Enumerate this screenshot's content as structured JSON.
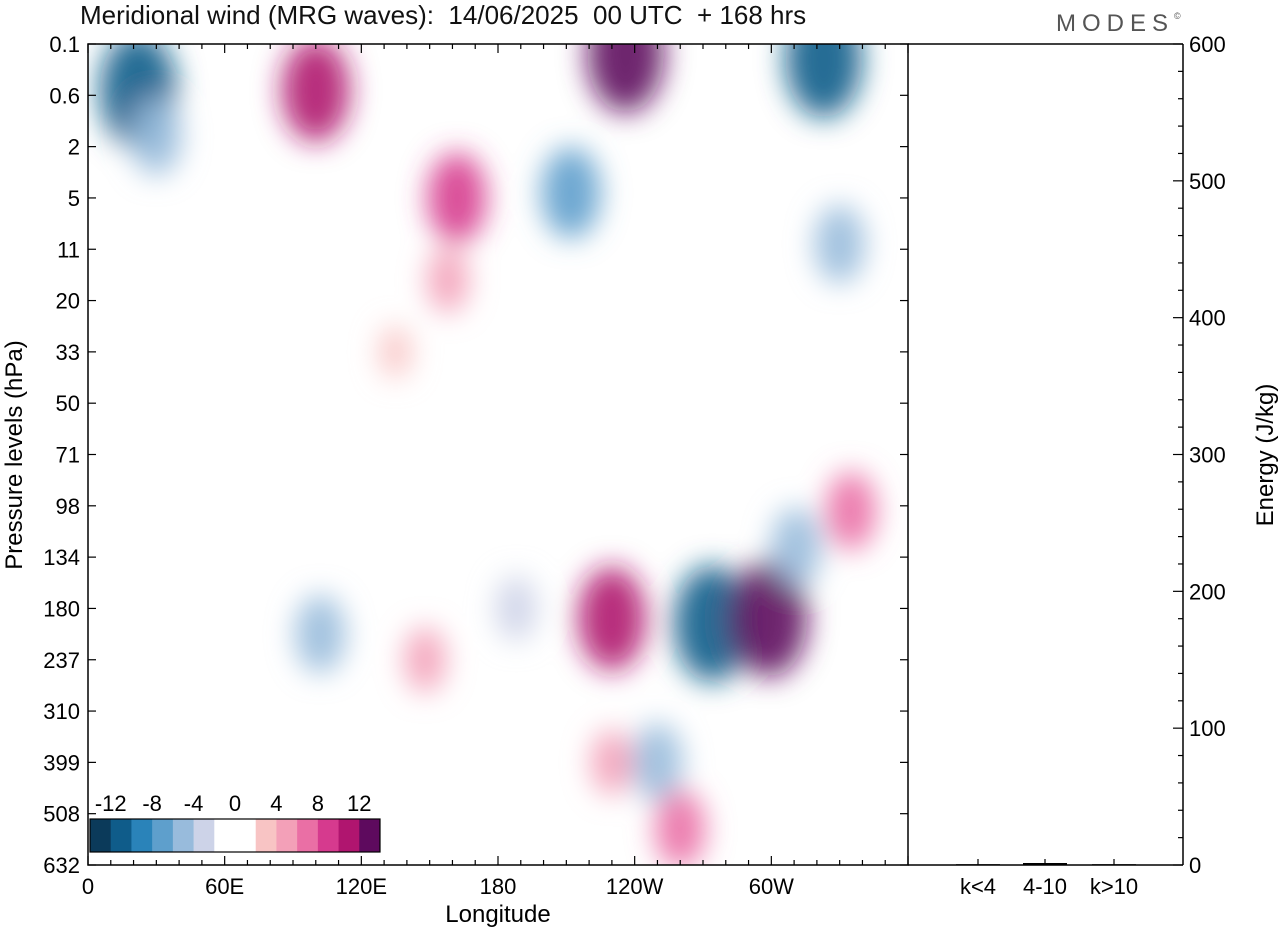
{
  "title": "Meridional wind (MRG waves):  14/06/2025  00 UTC  + 168 hrs",
  "brand": {
    "name": "MODES",
    "mark": "©"
  },
  "chart_data": [
    {
      "type": "heatmap",
      "title": "Meridional wind (MRG waves):  14/06/2025  00 UTC  + 168 hrs",
      "xlabel": "Longitude",
      "ylabel": "Pressure levels (hPa)",
      "x_ticks": [
        "0",
        "60E",
        "120E",
        "180",
        "120W",
        "60W"
      ],
      "x_tick_values": [
        0,
        60,
        120,
        180,
        240,
        300
      ],
      "xlim": [
        0,
        360
      ],
      "y_ticks": [
        "0.1",
        "0.6",
        "2",
        "5",
        "11",
        "20",
        "33",
        "50",
        "71",
        "98",
        "134",
        "180",
        "237",
        "310",
        "399",
        "508",
        "632"
      ],
      "y_scale": "model levels (categorical, top to bottom)",
      "colorbar": {
        "tick_labels": [
          "-12",
          "-8",
          "-4",
          "0",
          "4",
          "8",
          "12"
        ],
        "levels": [
          -14,
          -12,
          -10,
          -8,
          -6,
          -4,
          -2,
          0,
          2,
          4,
          6,
          8,
          10,
          12,
          14
        ],
        "colors": [
          "#0b3a5a",
          "#0f5c8a",
          "#2a83b9",
          "#5e9fcc",
          "#98bbdc",
          "#cdd3e8",
          "#ffffff",
          "#ffffff",
          "#f8c4c4",
          "#f3a0b8",
          "#ea6fa5",
          "#d63a8e",
          "#b0156f",
          "#5e0a5e"
        ]
      },
      "colorbar_placement": "bottom-left",
      "features": [
        {
          "lon": 22,
          "level": 0.9,
          "value": -12
        },
        {
          "lon": 100,
          "level": 0.9,
          "value": 10
        },
        {
          "lon": 162,
          "level": 3.0,
          "value": 8
        },
        {
          "lon": 236,
          "level": 0.2,
          "value": 12
        },
        {
          "lon": 323,
          "level": 0.3,
          "value": -12
        },
        {
          "lon": 30,
          "level": 1.8,
          "value": -6
        },
        {
          "lon": 212,
          "level": 2.9,
          "value": -8
        },
        {
          "lon": 330,
          "level": 3.9,
          "value": -6
        },
        {
          "lon": 158,
          "level": 4.6,
          "value": 4
        },
        {
          "lon": 135,
          "level": 6.0,
          "value": 2
        },
        {
          "lon": 102,
          "level": 11.5,
          "value": -6
        },
        {
          "lon": 230,
          "level": 11.2,
          "value": 10
        },
        {
          "lon": 274,
          "level": 11.3,
          "value": -12
        },
        {
          "lon": 299,
          "level": 11.2,
          "value": 12
        },
        {
          "lon": 311,
          "level": 9.8,
          "value": -6
        },
        {
          "lon": 335,
          "level": 9.1,
          "value": 6
        },
        {
          "lon": 148,
          "level": 12.0,
          "value": 4
        },
        {
          "lon": 230,
          "level": 14.0,
          "value": 4
        },
        {
          "lon": 250,
          "level": 14.0,
          "value": -6
        },
        {
          "lon": 260,
          "level": 15.3,
          "value": 6
        },
        {
          "lon": 188,
          "level": 11.0,
          "value": -4
        }
      ]
    },
    {
      "type": "bar",
      "title": "",
      "categories": [
        "k<4",
        "4-10",
        "k>10"
      ],
      "values": [
        0,
        1,
        0
      ],
      "ylabel": "Energy (J/kg)",
      "ylim": [
        0,
        600
      ],
      "y_ticks": [
        "0",
        "100",
        "200",
        "300",
        "400",
        "500",
        "600"
      ]
    }
  ]
}
